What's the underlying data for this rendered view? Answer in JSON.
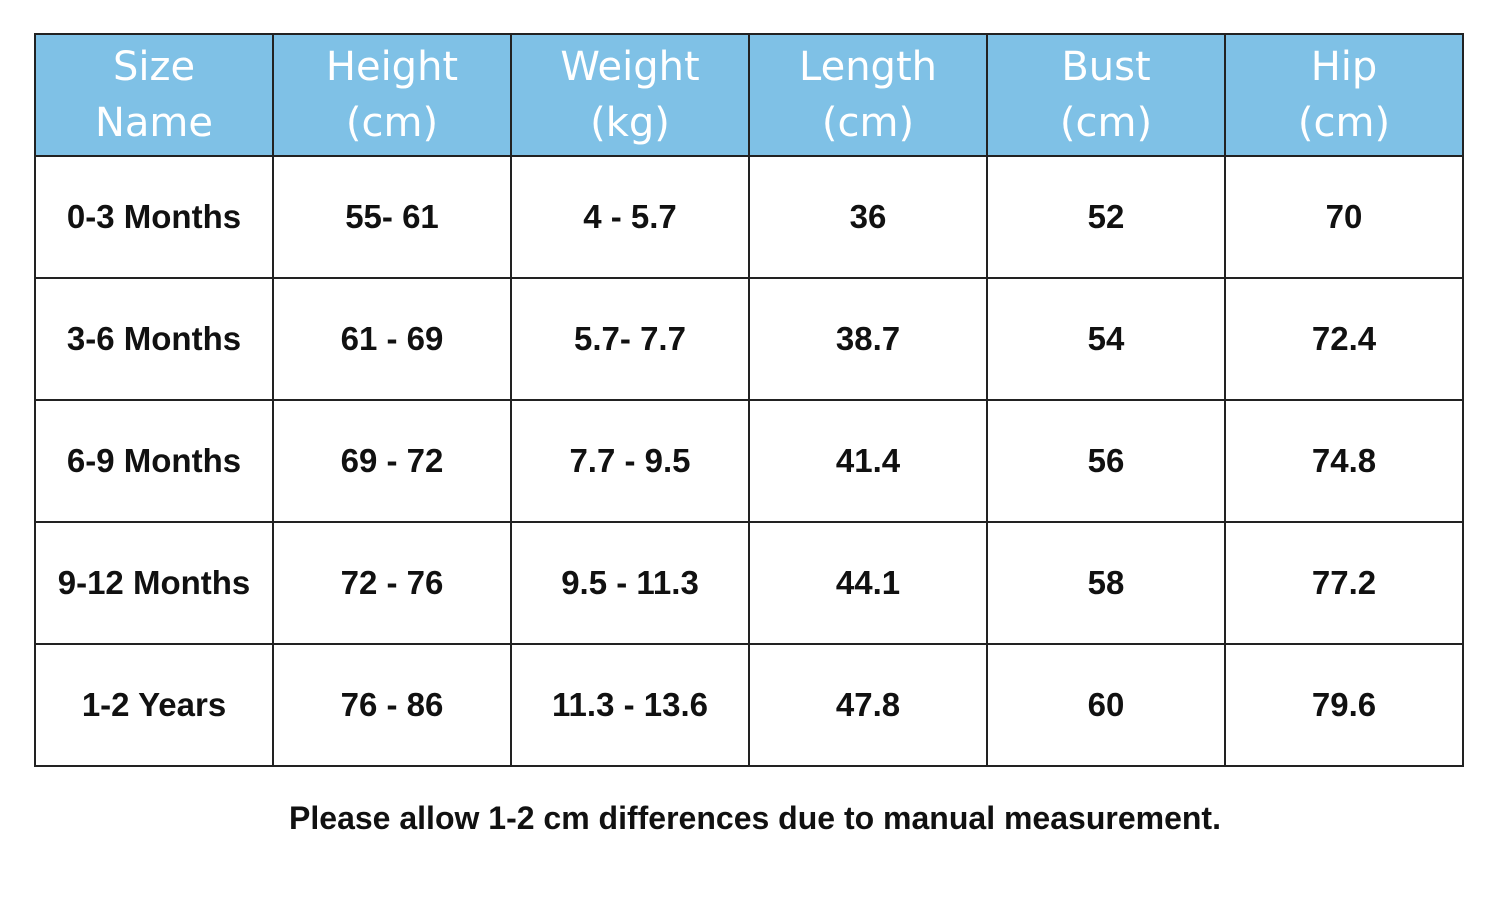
{
  "table": {
    "header": [
      [
        "Size",
        "Name"
      ],
      [
        "Height",
        "(cm)"
      ],
      [
        "Weight",
        "(kg)"
      ],
      [
        "Length",
        "(cm)"
      ],
      [
        "Bust",
        "(cm)"
      ],
      [
        "Hip",
        "(cm)"
      ]
    ],
    "rows": [
      [
        "0-3 Months",
        "55- 61",
        "4 - 5.7",
        "36",
        "52",
        "70"
      ],
      [
        "3-6 Months",
        "61 - 69",
        "5.7- 7.7",
        "38.7",
        "54",
        "72.4"
      ],
      [
        "6-9 Months",
        "69 - 72",
        "7.7 - 9.5",
        "41.4",
        "56",
        "74.8"
      ],
      [
        "9-12 Months",
        "72 - 76",
        "9.5 - 11.3",
        "44.1",
        "58",
        "77.2"
      ],
      [
        "1-2 Years",
        "76 - 86",
        "11.3 - 13.6",
        "47.8",
        "60",
        "79.6"
      ]
    ]
  },
  "note": "Please allow 1-2 cm differences due to manual measurement."
}
